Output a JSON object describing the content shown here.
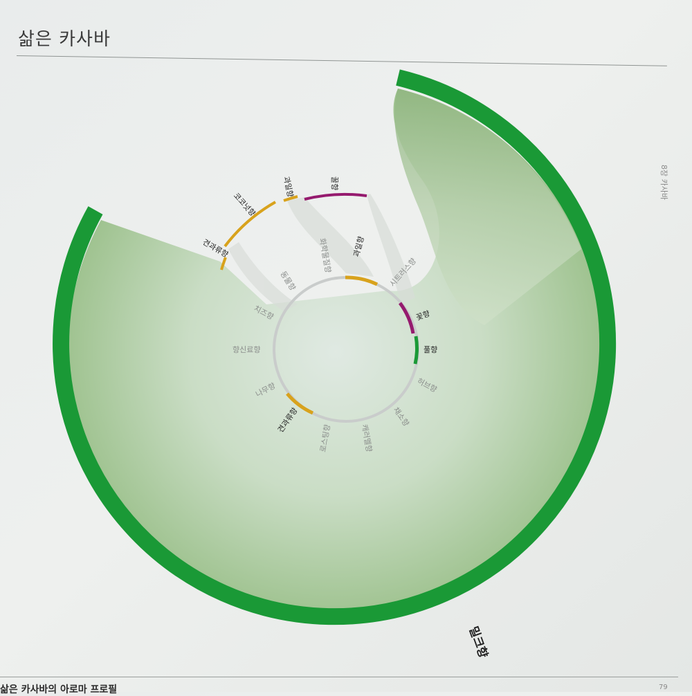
{
  "header": {
    "title": "삶은 카사바"
  },
  "side_text": "8장 카사바",
  "bottom_text": "삶은 카사바의 아로마 프로필",
  "page_number": "79",
  "colors": {
    "green": "#1a9936",
    "gold": "#d8a21c",
    "purple": "#951a6e",
    "ring_gray": "#c9cccb"
  },
  "diagram": {
    "outer_highlights": [
      {
        "label": "밀크향",
        "color": "green"
      }
    ],
    "middle_highlights": [
      {
        "label": "견과류향",
        "color": "gold"
      },
      {
        "label": "코코넛향",
        "color": "gold"
      },
      {
        "label": "과일향",
        "color": "gold"
      },
      {
        "label": "꿀향",
        "color": "purple"
      }
    ],
    "inner_categories": [
      {
        "label": "과일향",
        "highlighted": true,
        "color": "gold"
      },
      {
        "label": "시트러스향",
        "highlighted": false
      },
      {
        "label": "꽃향",
        "highlighted": true,
        "color": "purple"
      },
      {
        "label": "풀향",
        "highlighted": true,
        "color": "green"
      },
      {
        "label": "허브향",
        "highlighted": false
      },
      {
        "label": "채소향",
        "highlighted": false
      },
      {
        "label": "캐러멜향",
        "highlighted": false
      },
      {
        "label": "로스팅향",
        "highlighted": false
      },
      {
        "label": "견과류향",
        "highlighted": true,
        "color": "gold"
      },
      {
        "label": "나무향",
        "highlighted": false
      },
      {
        "label": "향신료향",
        "highlighted": false
      },
      {
        "label": "치즈향",
        "highlighted": false
      },
      {
        "label": "동물향",
        "highlighted": false
      },
      {
        "label": "화학물질향",
        "highlighted": false
      }
    ]
  }
}
